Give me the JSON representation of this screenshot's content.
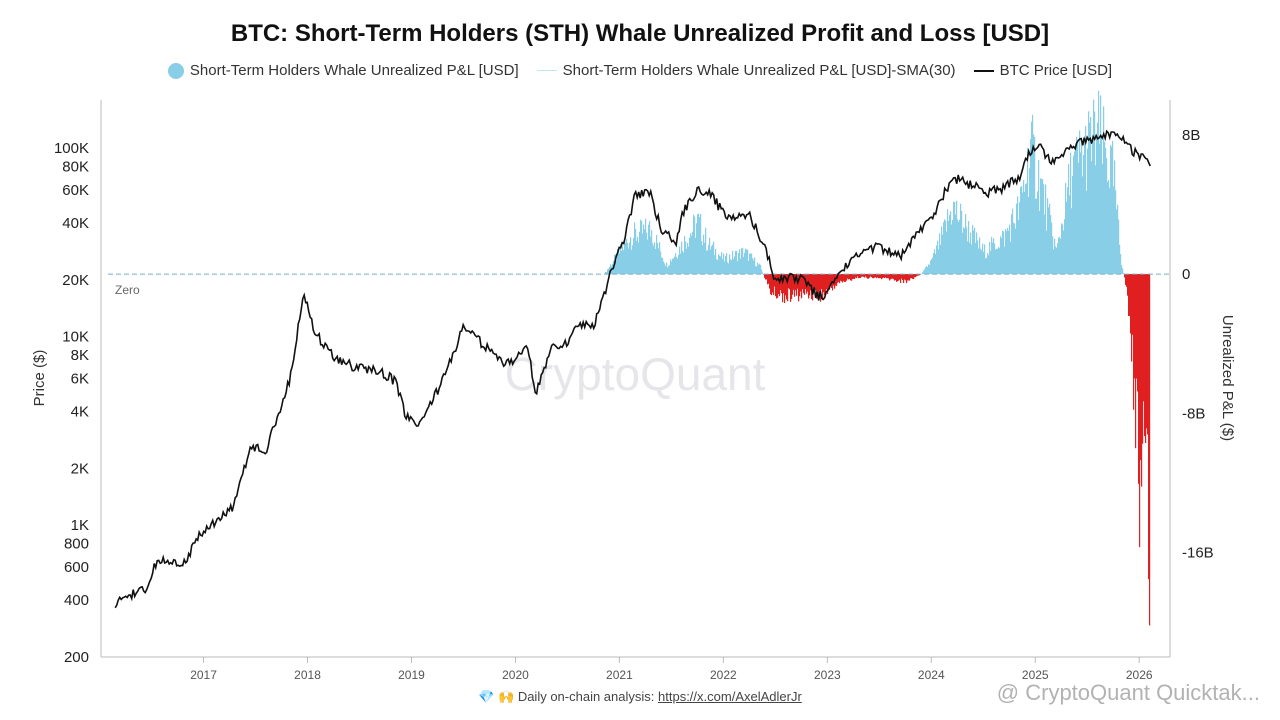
{
  "title": "BTC: Short-Term Holders (STH) Whale Unrealized Profit and Loss [USD]",
  "legend": [
    {
      "label": "Short-Term Holders Whale Unrealized P&L [USD]",
      "style": "dot",
      "color": "#87CEE6"
    },
    {
      "label": "Short-Term Holders Whale Unrealized P&L [USD]-SMA(30)",
      "style": "thin",
      "color": "#bfe6f3"
    },
    {
      "label": "BTC Price [USD]",
      "style": "line",
      "color": "#111111"
    }
  ],
  "watermark": "CryptoQuant",
  "footer": {
    "icons": "💎 🙌",
    "text": "Daily on-chain analysis:",
    "link": "https://x.com/AxelAdlerJr"
  },
  "credit": "@ CryptoQuant Quicktak...",
  "chart_data": {
    "type": "line",
    "left_axis": {
      "label": "Price ($)",
      "scale": "log",
      "range": [
        200,
        180000
      ],
      "ticks": [
        200,
        400,
        600,
        800,
        1000,
        2000,
        4000,
        6000,
        8000,
        10000,
        20000,
        40000,
        60000,
        80000,
        100000
      ],
      "tick_labels": [
        "200",
        "400",
        "600",
        "800",
        "1K",
        "2K",
        "4K",
        "6K",
        "8K",
        "10K",
        "20K",
        "40K",
        "60K",
        "80K",
        "100K"
      ]
    },
    "right_axis": {
      "label": "Unrealized P&L ($)",
      "range": [
        -22000000000,
        10000000000
      ],
      "ticks": [
        8000000000,
        0,
        -8000000000,
        -16000000000
      ],
      "tick_labels": [
        "8B",
        "0",
        "-8B",
        "-16B"
      ]
    },
    "x_axis": {
      "range": [
        2016.1,
        2026.2
      ],
      "ticks": [
        2017,
        2018,
        2019,
        2020,
        2021,
        2022,
        2023,
        2024,
        2025,
        2026
      ],
      "tick_labels": [
        "2017",
        "2018",
        "2019",
        "2020",
        "2021",
        "2022",
        "2023",
        "2024",
        "2025",
        "2026"
      ]
    },
    "zero_line_label": "Zero",
    "colors": {
      "positive": "#87CEE6",
      "negative": "#E02020",
      "price": "#111111",
      "zero": "#7aaec6"
    },
    "btc_price": {
      "name": "BTC Price [USD]",
      "x": [
        2016.15,
        2016.3,
        2016.45,
        2016.55,
        2016.8,
        2017.0,
        2017.15,
        2017.3,
        2017.45,
        2017.6,
        2017.75,
        2017.85,
        2017.96,
        2018.05,
        2018.15,
        2018.3,
        2018.5,
        2018.7,
        2018.85,
        2018.95,
        2019.1,
        2019.25,
        2019.4,
        2019.5,
        2019.6,
        2019.75,
        2019.9,
        2020.0,
        2020.1,
        2020.2,
        2020.35,
        2020.5,
        2020.6,
        2020.75,
        2020.85,
        2020.95,
        2021.05,
        2021.15,
        2021.3,
        2021.4,
        2021.55,
        2021.6,
        2021.75,
        2021.87,
        2022.0,
        2022.1,
        2022.25,
        2022.4,
        2022.5,
        2022.65,
        2022.8,
        2022.9,
        2023.0,
        2023.15,
        2023.3,
        2023.5,
        2023.7,
        2023.85,
        2024.0,
        2024.15,
        2024.25,
        2024.4,
        2024.55,
        2024.7,
        2024.85,
        2024.95,
        2025.05,
        2025.15,
        2025.3,
        2025.45,
        2025.6,
        2025.75,
        2025.85,
        2025.95,
        2026.05,
        2026.12
      ],
      "y": [
        380,
        430,
        450,
        650,
        620,
        950,
        1050,
        1300,
        2600,
        2500,
        4300,
        6500,
        17500,
        11500,
        9000,
        7500,
        6800,
        6500,
        5800,
        3700,
        3500,
        5200,
        8000,
        11500,
        10000,
        8500,
        7200,
        7200,
        9500,
        5000,
        9000,
        9200,
        11500,
        11500,
        16500,
        25000,
        34000,
        56000,
        58000,
        37000,
        32000,
        45000,
        60000,
        58000,
        45000,
        42000,
        44000,
        30000,
        20000,
        21000,
        19500,
        16500,
        16800,
        23000,
        28000,
        30000,
        26500,
        35000,
        42000,
        62000,
        69000,
        63000,
        58000,
        62000,
        70000,
        95000,
        100000,
        84000,
        95000,
        108000,
        115000,
        118000,
        110000,
        95000,
        90000,
        76000
      ]
    },
    "sth_whale_unrealized_pnl": {
      "name": "Short-Term Holders Whale Unrealized P&L [USD]",
      "x": [
        2016.1,
        2020.85,
        2020.95,
        2021.1,
        2021.3,
        2021.45,
        2021.6,
        2021.75,
        2021.85,
        2022.0,
        2022.2,
        2022.35,
        2022.45,
        2022.6,
        2022.8,
        2022.95,
        2023.1,
        2023.3,
        2023.55,
        2023.75,
        2023.9,
        2024.0,
        2024.1,
        2024.2,
        2024.3,
        2024.5,
        2024.7,
        2024.85,
        2024.95,
        2025.05,
        2025.2,
        2025.35,
        2025.45,
        2025.6,
        2025.75,
        2025.82,
        2025.88,
        2025.95,
        2026.0,
        2026.05,
        2026.1
      ],
      "y": [
        0,
        0,
        1000000000,
        2500000000,
        3000000000,
        600000000,
        2000000000,
        3500000000,
        2000000000,
        1000000000,
        1500000000,
        500000000,
        -1200000000,
        -1500000000,
        -1300000000,
        -1400000000,
        -600000000,
        -200000000,
        -300000000,
        -500000000,
        0,
        900000000,
        2500000000,
        4500000000,
        3500000000,
        1500000000,
        2500000000,
        4500000000,
        8500000000,
        6000000000,
        1500000000,
        7000000000,
        8000000000,
        9500000000,
        6500000000,
        1000000000,
        -1200000000,
        -8000000000,
        -14000000000,
        -12000000000,
        -21500000000
      ]
    }
  }
}
